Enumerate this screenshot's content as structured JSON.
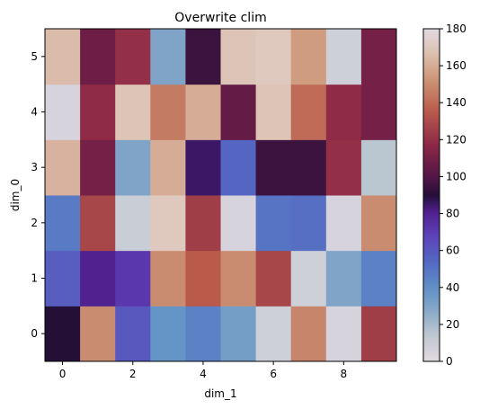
{
  "chart_data": {
    "type": "heatmap",
    "title": "Overwrite clim",
    "xlabel": "dim_1",
    "ylabel": "dim_0",
    "x": [
      0,
      1,
      2,
      3,
      4,
      5,
      6,
      7,
      8,
      9
    ],
    "y": [
      0,
      1,
      2,
      3,
      4,
      5
    ],
    "x_ticks": [
      "0",
      "2",
      "4",
      "6",
      "8"
    ],
    "y_ticks": [
      "0",
      "1",
      "2",
      "3",
      "4",
      "5"
    ],
    "x_tick_values": [
      0,
      2,
      4,
      6,
      8
    ],
    "y_tick_values": [
      0,
      1,
      2,
      3,
      4,
      5
    ],
    "values": [
      [
        90,
        150,
        60,
        38,
        45,
        33,
        8,
        148,
        5,
        125
      ],
      [
        58,
        80,
        72,
        150,
        135,
        150,
        128,
        8,
        30,
        45
      ],
      [
        48,
        128,
        10,
        170,
        125,
        5,
        50,
        52,
        5,
        150
      ],
      [
        162,
        110,
        30,
        160,
        85,
        55,
        95,
        95,
        120,
        15
      ],
      [
        5,
        118,
        168,
        145,
        160,
        105,
        168,
        140,
        118,
        110
      ],
      [
        165,
        108,
        120,
        30,
        95,
        168,
        170,
        155,
        8,
        110
      ]
    ],
    "colorbar": {
      "min": 0,
      "max": 180,
      "ticks": [
        "0",
        "20",
        "40",
        "60",
        "80",
        "100",
        "120",
        "140",
        "160",
        "180"
      ],
      "tick_values": [
        0,
        20,
        40,
        60,
        80,
        100,
        120,
        140,
        160,
        180
      ],
      "colormap": "twilight"
    },
    "grid": false
  }
}
